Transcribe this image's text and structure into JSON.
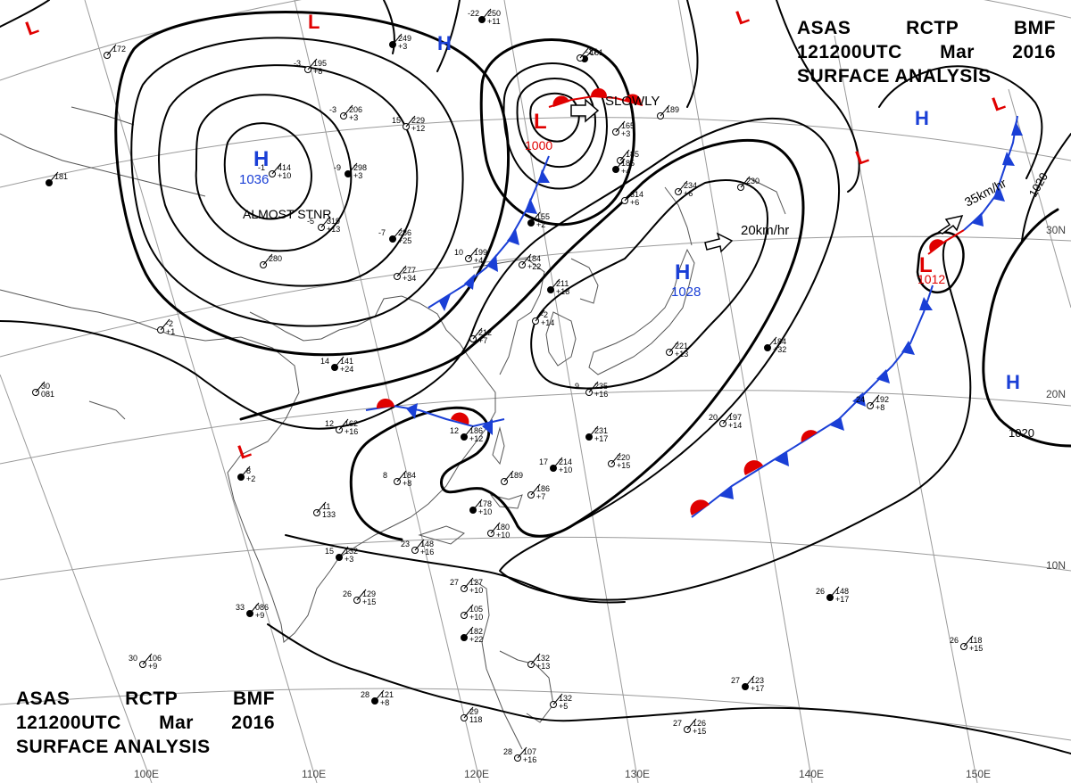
{
  "header": {
    "line1": [
      "ASAS",
      "RCTP",
      "BMF"
    ],
    "line2": [
      "121200UTC",
      "Mar",
      "2016"
    ],
    "line3": "SURFACE ANALYSIS"
  },
  "colors": {
    "high": "#1a3fd6",
    "low": "#e00000",
    "cold_front": "#1a3fd6",
    "warm_front": "#e00000",
    "isobar": "#000000",
    "grid": "#9a9a9a",
    "coast": "#555555"
  },
  "lat_labels": [
    "30N",
    "20N",
    "10N"
  ],
  "lon_labels": [
    "100E",
    "110E",
    "120E",
    "130E",
    "140E",
    "150E"
  ],
  "isobar_labels": [
    "1020",
    "1020"
  ],
  "centers": [
    {
      "type": "H",
      "value": "1036",
      "note": "ALMOST STNR"
    },
    {
      "type": "H",
      "value": "1028",
      "note": "20km/hr"
    },
    {
      "type": "L",
      "value": "1000",
      "note": "SLOWLY"
    },
    {
      "type": "L",
      "value": "1012",
      "note": "35km/hr"
    },
    {
      "type": "H",
      "value": "",
      "note": ""
    },
    {
      "type": "H",
      "value": "",
      "note": ""
    },
    {
      "type": "H",
      "value": "",
      "note": ""
    },
    {
      "type": "L",
      "value": "",
      "note": ""
    },
    {
      "type": "L",
      "value": "",
      "note": ""
    },
    {
      "type": "L",
      "value": "",
      "note": ""
    },
    {
      "type": "L",
      "value": "",
      "note": ""
    },
    {
      "type": "L",
      "value": "",
      "note": ""
    }
  ],
  "stations": [
    [
      "-22",
      "250",
      "+11"
    ],
    [
      "172",
      ""
    ],
    [
      "-3",
      "195",
      "+8"
    ],
    [
      "249",
      "+3"
    ],
    [
      "-3",
      "206",
      "+3"
    ],
    [
      "15",
      "229",
      "+12"
    ],
    [
      "-9",
      "298",
      "+3"
    ],
    [
      "-1",
      "414",
      "+10"
    ],
    [
      "-5",
      "319",
      "+13"
    ],
    [
      "-7",
      "286",
      "+25"
    ],
    [
      "280",
      ""
    ],
    [
      "277",
      "+34"
    ],
    [
      "181",
      ""
    ],
    [
      "185",
      ""
    ],
    [
      "-2",
      "+1"
    ],
    [
      "14",
      "141",
      "+24"
    ],
    [
      "30",
      "081"
    ],
    [
      "12",
      "162",
      "+16"
    ],
    [
      "8",
      "+2"
    ],
    [
      "10",
      "199",
      "+4"
    ],
    [
      "184",
      "+22"
    ],
    [
      "211",
      "+18"
    ],
    [
      "212",
      "+7"
    ],
    [
      "-2",
      "+14"
    ],
    [
      "231",
      "+17"
    ],
    [
      "9",
      "235",
      "+16"
    ],
    [
      "221",
      "+13"
    ],
    [
      "184",
      "+32"
    ],
    [
      "20",
      "197",
      "+14"
    ],
    [
      "24",
      "192",
      "+8"
    ],
    [
      "17",
      "214",
      "+10"
    ],
    [
      "220",
      "+15"
    ],
    [
      "8",
      "184",
      "+8"
    ],
    [
      "12",
      "186",
      "+12"
    ],
    [
      "189",
      ""
    ],
    [
      "186",
      "+7"
    ],
    [
      "178",
      "+10"
    ],
    [
      "180",
      "+10"
    ],
    [
      "11",
      "133"
    ],
    [
      "15",
      "132",
      "+3"
    ],
    [
      "23",
      "148",
      "+16"
    ],
    [
      "26",
      "129",
      "+15"
    ],
    [
      "33",
      "086",
      "+9"
    ],
    [
      "27",
      "127",
      "+10"
    ],
    [
      "105",
      "+10"
    ],
    [
      "182",
      "+22"
    ],
    [
      "132",
      "+13"
    ],
    [
      "30",
      "106",
      "+9"
    ],
    [
      "28",
      "121",
      "+8"
    ],
    [
      "29",
      "118"
    ],
    [
      "132",
      "+5"
    ],
    [
      "27",
      "123",
      "+17"
    ],
    [
      "27",
      "126",
      "+15"
    ],
    [
      "28",
      "107",
      "+16"
    ],
    [
      "26",
      "148",
      "+17"
    ],
    [
      "26",
      "118",
      "+15"
    ],
    [
      "165",
      "+3"
    ],
    [
      "185",
      "+4"
    ],
    [
      "234",
      "+6"
    ],
    [
      "314",
      "+6"
    ],
    [
      "161"
    ],
    [
      "189"
    ],
    [
      "-17"
    ],
    [
      "155",
      "+2"
    ],
    [
      "230"
    ]
  ]
}
